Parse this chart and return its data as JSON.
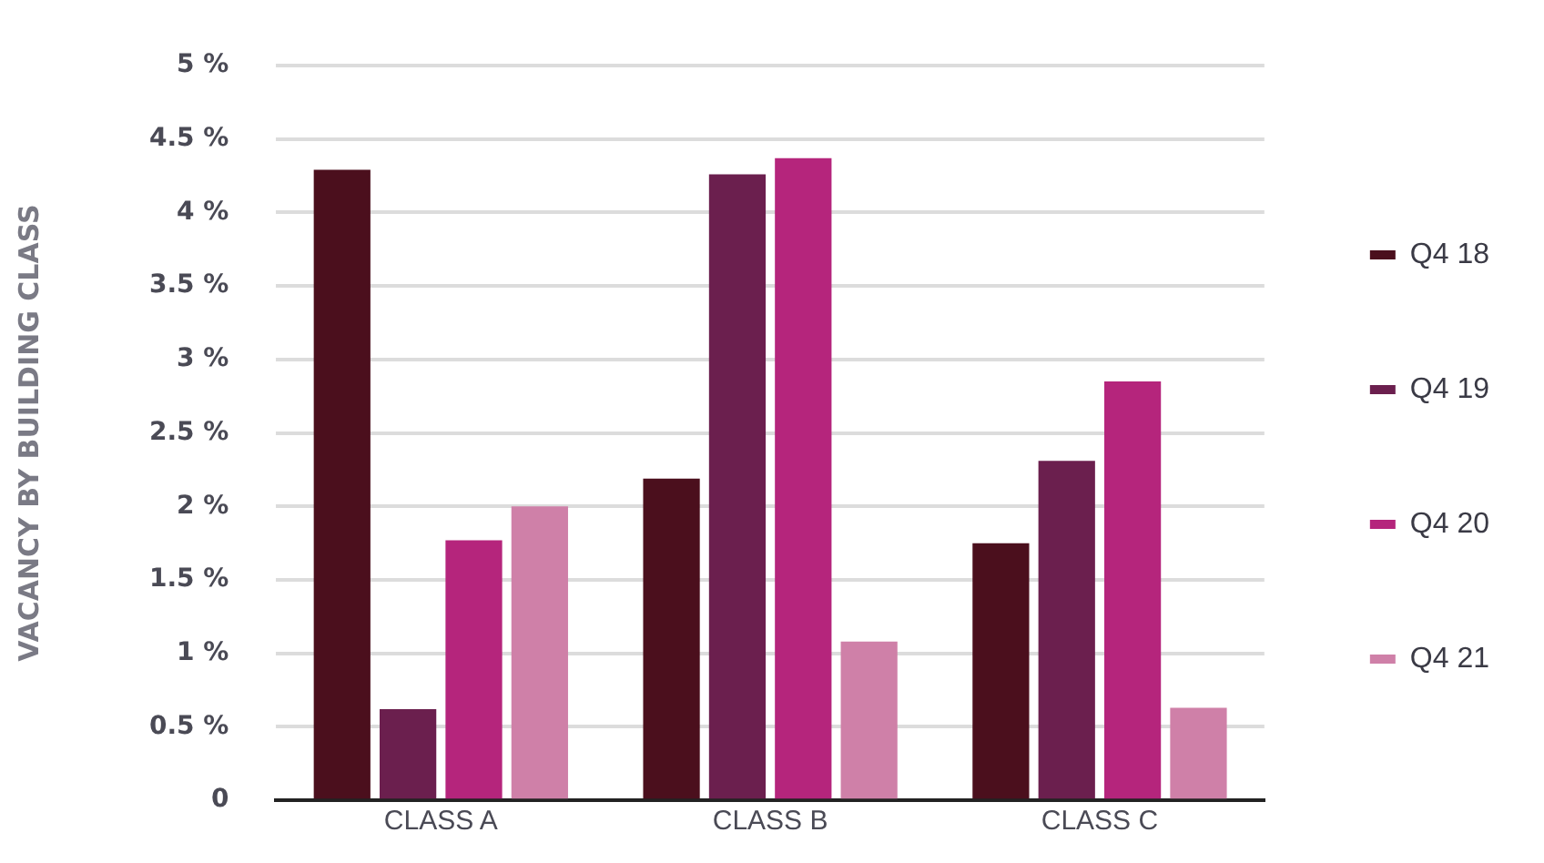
{
  "chart_data": {
    "type": "bar",
    "ylabel": "VACANCY BY BUILDING CLASS",
    "categories": [
      "CLASS A",
      "CLASS B",
      "CLASS C"
    ],
    "series": [
      {
        "name": "Q4 18",
        "color": "#4b0f1d",
        "values": [
          4.29,
          2.19,
          1.75
        ]
      },
      {
        "name": "Q4 19",
        "color": "#6b1f4e",
        "values": [
          0.62,
          4.26,
          2.31
        ]
      },
      {
        "name": "Q4 20",
        "color": "#b5257c",
        "values": [
          1.77,
          4.37,
          2.85
        ]
      },
      {
        "name": "Q4 21",
        "color": "#cf80a8",
        "values": [
          2.0,
          1.08,
          0.63
        ]
      }
    ],
    "ylim": [
      0,
      5
    ],
    "yticks": [
      {
        "value": 0,
        "label": "0"
      },
      {
        "value": 0.5,
        "label": "0.5 %"
      },
      {
        "value": 1,
        "label": "1 %"
      },
      {
        "value": 1.5,
        "label": "1.5 %"
      },
      {
        "value": 2,
        "label": "2 %"
      },
      {
        "value": 2.5,
        "label": "2.5 %"
      },
      {
        "value": 3,
        "label": "3 %"
      },
      {
        "value": 3.5,
        "label": "3.5 %"
      },
      {
        "value": 4,
        "label": "4 %"
      },
      {
        "value": 4.5,
        "label": "4.5 %"
      },
      {
        "value": 5,
        "label": "5 %"
      }
    ],
    "grid": "y",
    "legend": "right"
  }
}
